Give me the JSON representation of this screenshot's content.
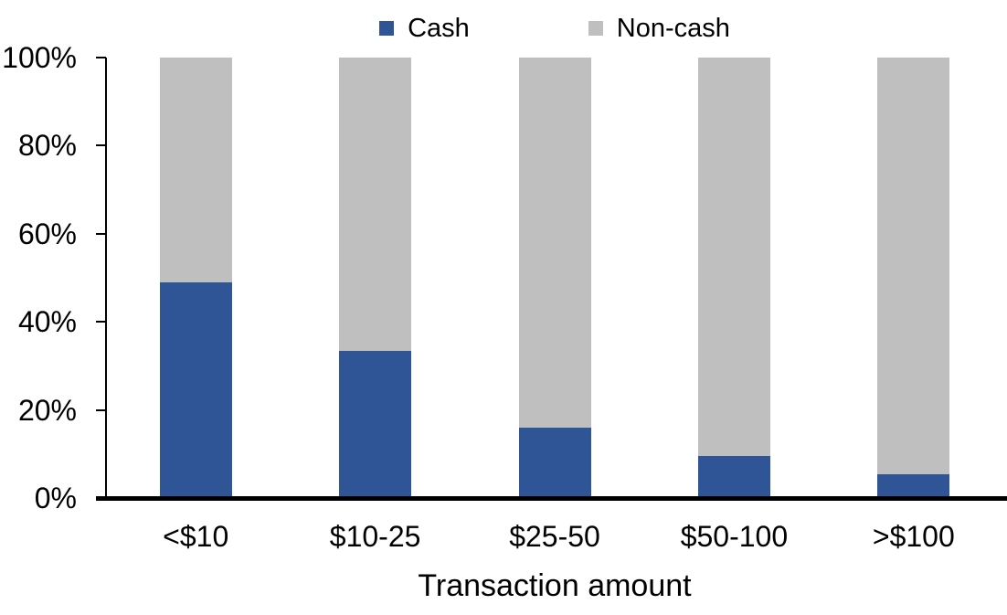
{
  "chart_data": {
    "type": "bar",
    "variant": "100%-stacked-column",
    "categories": [
      "<$10",
      "$10-25",
      "$25-50",
      "$50-100",
      ">$100"
    ],
    "series": [
      {
        "name": "Cash",
        "color": "#2F5597",
        "values": [
          49,
          33.5,
          16,
          9.5,
          5.5
        ]
      },
      {
        "name": "Non-cash",
        "color": "#BFBFBF",
        "values": [
          51,
          66.5,
          84,
          90.5,
          94.5
        ]
      }
    ],
    "title": "",
    "xlabel": "Transaction amount",
    "ylabel": "",
    "ylim": [
      0,
      100
    ],
    "yticks": [
      "0%",
      "20%",
      "40%",
      "60%",
      "80%",
      "100%"
    ],
    "grid": false,
    "legend_position": "top-center",
    "axis_color": "#000000",
    "background_color": "#FFFFFF"
  }
}
